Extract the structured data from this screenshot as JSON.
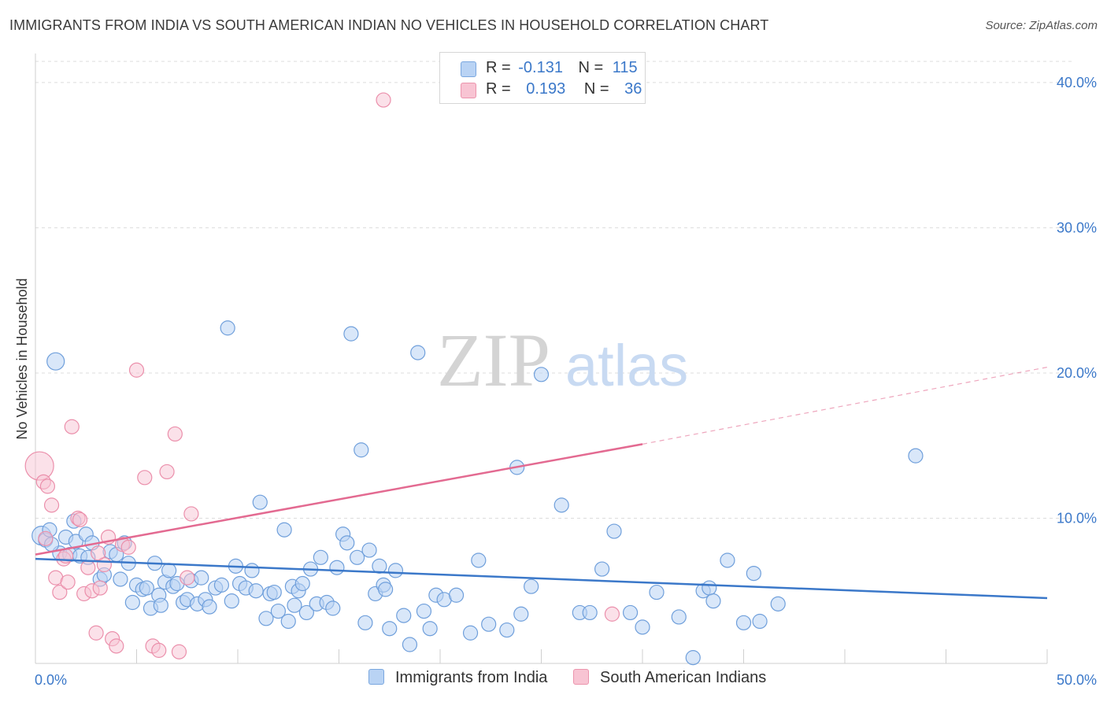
{
  "title": "IMMIGRANTS FROM INDIA VS SOUTH AMERICAN INDIAN NO VEHICLES IN HOUSEHOLD CORRELATION CHART",
  "source": "Source: ZipAtlas.com",
  "watermark": {
    "zip": "ZIP",
    "atlas": "atlas"
  },
  "legend": {
    "rows": [
      {
        "r_label": "R =",
        "r_value": "-0.131",
        "n_label": "N =",
        "n_value": "115",
        "color_fill": "#b9d3f4",
        "color_stroke": "#7aa7df"
      },
      {
        "r_label": "R =",
        "r_value": "0.193",
        "n_label": "N =",
        "n_value": "36",
        "color_fill": "#f8c4d3",
        "color_stroke": "#ec94ad"
      }
    ]
  },
  "bottom_legend": [
    {
      "label": "Immigrants from India",
      "color": "#b9d3f4"
    },
    {
      "label": "South American Indians",
      "color": "#f8c4d3"
    }
  ],
  "chart_data": {
    "type": "scatter",
    "ylabel": "No Vehicles in Household",
    "xlim": [
      0,
      50
    ],
    "ylim": [
      0,
      42
    ],
    "x_ticks": [
      {
        "value": 0,
        "label": "0.0%"
      },
      {
        "value": 50,
        "label": "50.0%"
      }
    ],
    "y_ticks": [
      {
        "value": 10,
        "label": "10.0%"
      },
      {
        "value": 20,
        "label": "20.0%"
      },
      {
        "value": 30,
        "label": "30.0%"
      },
      {
        "value": 40,
        "label": "40.0%"
      }
    ],
    "colors": {
      "blue": "#3b78c9",
      "blue_fill": "#b9d3f4",
      "pink": "#e36a91",
      "pink_fill": "#f8c4d3",
      "axis_text": "#3b78c9"
    },
    "series": [
      {
        "name": "Immigrants from India",
        "trend": {
          "x0": 0,
          "y0": 7.2,
          "x1": 50,
          "y1": 4.5
        },
        "points": [
          [
            0.3,
            8.8
          ],
          [
            0.5,
            8.5
          ],
          [
            0.7,
            9.2
          ],
          [
            1.0,
            20.8
          ],
          [
            1.2,
            7.6
          ],
          [
            1.5,
            8.7
          ],
          [
            1.7,
            7.5
          ],
          [
            1.9,
            9.8
          ],
          [
            2.0,
            8.4
          ],
          [
            2.2,
            7.4
          ],
          [
            2.5,
            8.9
          ],
          [
            2.8,
            8.3
          ],
          [
            3.2,
            5.8
          ],
          [
            3.4,
            6.1
          ],
          [
            3.7,
            7.7
          ],
          [
            4.0,
            7.5
          ],
          [
            4.2,
            5.8
          ],
          [
            4.4,
            8.3
          ],
          [
            4.6,
            6.9
          ],
          [
            4.8,
            4.2
          ],
          [
            5.0,
            5.4
          ],
          [
            5.3,
            5.1
          ],
          [
            5.5,
            5.2
          ],
          [
            5.7,
            3.8
          ],
          [
            5.9,
            6.9
          ],
          [
            6.1,
            4.7
          ],
          [
            6.4,
            5.6
          ],
          [
            6.6,
            6.4
          ],
          [
            6.8,
            5.3
          ],
          [
            7.0,
            5.5
          ],
          [
            7.3,
            4.2
          ],
          [
            7.5,
            4.4
          ],
          [
            7.7,
            5.7
          ],
          [
            8.0,
            4.1
          ],
          [
            8.2,
            5.9
          ],
          [
            8.4,
            4.4
          ],
          [
            8.6,
            3.9
          ],
          [
            8.9,
            5.2
          ],
          [
            9.2,
            5.4
          ],
          [
            9.5,
            23.1
          ],
          [
            9.7,
            4.3
          ],
          [
            9.9,
            6.7
          ],
          [
            10.1,
            5.5
          ],
          [
            10.4,
            5.2
          ],
          [
            10.7,
            6.4
          ],
          [
            10.9,
            5.0
          ],
          [
            11.1,
            11.1
          ],
          [
            11.4,
            3.1
          ],
          [
            11.6,
            4.8
          ],
          [
            11.8,
            4.9
          ],
          [
            12.0,
            3.6
          ],
          [
            12.3,
            9.2
          ],
          [
            12.5,
            2.9
          ],
          [
            12.7,
            5.3
          ],
          [
            13.0,
            5.0
          ],
          [
            13.2,
            5.5
          ],
          [
            13.4,
            3.5
          ],
          [
            13.6,
            6.5
          ],
          [
            13.9,
            4.1
          ],
          [
            14.1,
            7.3
          ],
          [
            14.4,
            4.2
          ],
          [
            14.7,
            3.8
          ],
          [
            14.9,
            6.6
          ],
          [
            15.2,
            8.9
          ],
          [
            15.4,
            8.3
          ],
          [
            15.6,
            22.7
          ],
          [
            15.9,
            7.3
          ],
          [
            16.1,
            14.7
          ],
          [
            16.3,
            2.8
          ],
          [
            16.5,
            7.8
          ],
          [
            16.8,
            4.8
          ],
          [
            17.0,
            6.7
          ],
          [
            17.2,
            5.4
          ],
          [
            17.5,
            2.4
          ],
          [
            17.8,
            6.4
          ],
          [
            18.2,
            3.3
          ],
          [
            18.5,
            1.3
          ],
          [
            18.9,
            21.4
          ],
          [
            19.2,
            3.6
          ],
          [
            19.5,
            2.4
          ],
          [
            19.8,
            4.7
          ],
          [
            20.2,
            4.4
          ],
          [
            20.8,
            4.7
          ],
          [
            21.5,
            2.1
          ],
          [
            21.9,
            7.1
          ],
          [
            22.4,
            2.7
          ],
          [
            23.3,
            2.3
          ],
          [
            23.8,
            13.5
          ],
          [
            24.0,
            3.4
          ],
          [
            24.5,
            5.3
          ],
          [
            25.0,
            19.9
          ],
          [
            26.0,
            10.9
          ],
          [
            26.9,
            3.5
          ],
          [
            27.4,
            3.5
          ],
          [
            28.0,
            6.5
          ],
          [
            28.6,
            9.1
          ],
          [
            29.4,
            3.5
          ],
          [
            30.0,
            2.5
          ],
          [
            30.7,
            4.9
          ],
          [
            31.8,
            3.2
          ],
          [
            32.5,
            0.4
          ],
          [
            33.0,
            5.0
          ],
          [
            33.3,
            5.2
          ],
          [
            33.5,
            4.3
          ],
          [
            34.2,
            7.1
          ],
          [
            35.0,
            2.8
          ],
          [
            35.5,
            6.2
          ],
          [
            35.8,
            2.9
          ],
          [
            36.7,
            4.1
          ],
          [
            43.5,
            14.3
          ],
          [
            0.8,
            8.2
          ],
          [
            2.6,
            7.3
          ],
          [
            6.2,
            4.0
          ],
          [
            12.8,
            4.0
          ],
          [
            17.3,
            5.1
          ]
        ]
      },
      {
        "name": "South American Indians",
        "trend": {
          "x0": 0,
          "y0": 7.5,
          "x1": 30,
          "y1": 15.1,
          "x_ext": 50,
          "y_ext": 20.4
        },
        "points": [
          [
            0.2,
            13.6
          ],
          [
            0.4,
            12.5
          ],
          [
            0.5,
            8.6
          ],
          [
            0.6,
            12.2
          ],
          [
            0.8,
            10.9
          ],
          [
            1.0,
            5.9
          ],
          [
            1.2,
            4.9
          ],
          [
            1.4,
            7.2
          ],
          [
            1.6,
            5.6
          ],
          [
            1.8,
            16.3
          ],
          [
            2.1,
            10.0
          ],
          [
            2.4,
            4.8
          ],
          [
            2.6,
            6.6
          ],
          [
            2.8,
            5.0
          ],
          [
            3.0,
            2.1
          ],
          [
            3.2,
            5.2
          ],
          [
            3.4,
            6.8
          ],
          [
            3.6,
            8.7
          ],
          [
            3.8,
            1.7
          ],
          [
            4.0,
            1.2
          ],
          [
            4.3,
            8.2
          ],
          [
            4.6,
            8.0
          ],
          [
            5.0,
            20.2
          ],
          [
            5.4,
            12.8
          ],
          [
            5.8,
            1.2
          ],
          [
            6.1,
            0.9
          ],
          [
            6.5,
            13.2
          ],
          [
            6.9,
            15.8
          ],
          [
            7.1,
            0.8
          ],
          [
            7.5,
            5.9
          ],
          [
            7.7,
            10.3
          ],
          [
            17.2,
            38.8
          ],
          [
            28.5,
            3.4
          ],
          [
            2.2,
            9.9
          ],
          [
            1.5,
            7.4
          ],
          [
            3.1,
            7.6
          ]
        ]
      }
    ]
  }
}
